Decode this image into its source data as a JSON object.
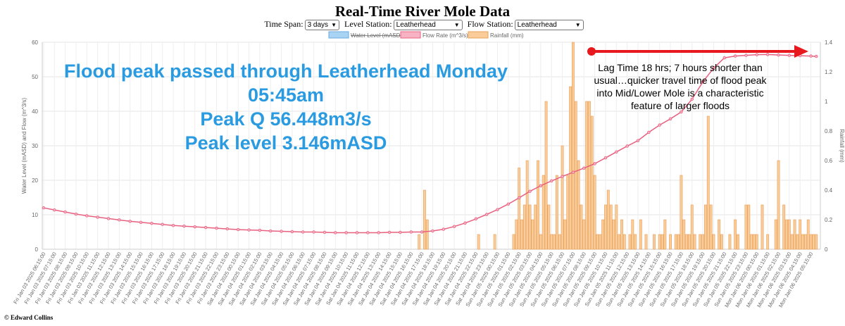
{
  "page": {
    "title": "Real-Time River Mole Data",
    "footer": "© Edward Collins"
  },
  "controls": {
    "time_span_label": "Time Span:",
    "time_span_value": "3 days",
    "level_station_label": "Level Station:",
    "level_station_value": "Leatherhead",
    "flow_station_label": "Flow Station:",
    "flow_station_value": "Leatherhead"
  },
  "annotations": {
    "peak_lines": [
      "Flood peak passed through Leatherhead Monday",
      "05:45am",
      "Peak Q 56.448m3/s",
      "Peak level 3.146mASD"
    ],
    "lag_lines": [
      "Lag Time 18 hrs; 7 hours shorter than",
      "usual…quicker travel time of flood peak",
      "into Mid/Lower Mole is a characteristic",
      "feature of larger floods"
    ],
    "arrow_color": "#e8191e",
    "peak_text_color": "#2a9be0"
  },
  "chart_data": {
    "type": "bar",
    "xlabel": "",
    "ylabel": "Water Level (mASD) and Flow (m^3/s)",
    "ylabel_right": "Rainfall (mm)",
    "ylim": [
      0,
      60
    ],
    "ylim_right": [
      0,
      1.4
    ],
    "yticks": [
      0,
      10,
      20,
      30,
      40,
      50,
      60
    ],
    "yticks_right": [
      0,
      0.2,
      0.4,
      0.6,
      0.8,
      1.0,
      1.2,
      1.4
    ],
    "grid": true,
    "legend_position": "top",
    "legend": [
      {
        "name": "Water Level (mASD)",
        "color": "#a9d3f2",
        "border": "#66a8e0",
        "hidden": true
      },
      {
        "name": "Flow Rate (m^3/s)",
        "color": "#f7b3c4",
        "border": "#e8607f",
        "hidden": false
      },
      {
        "name": "Rainfall (mm)",
        "color": "#f9cc9a",
        "border": "#e8a05a",
        "hidden": false
      }
    ],
    "x_tick_labels": [
      "Fri Jan 03 2025 06:15:00",
      "Fri Jan 03 2025 07:15:00",
      "Fri Jan 03 2025 08:15:00",
      "Fri Jan 03 2025 09:15:00",
      "Fri Jan 03 2025 10:15:00",
      "Fri Jan 03 2025 11:15:00",
      "Fri Jan 03 2025 12:15:00",
      "Fri Jan 03 2025 13:15:00",
      "Fri Jan 03 2025 14:15:00",
      "Fri Jan 03 2025 15:15:00",
      "Fri Jan 03 2025 16:15:00",
      "Fri Jan 03 2025 17:15:00",
      "Fri Jan 03 2025 18:15:00",
      "Fri Jan 03 2025 19:15:00",
      "Fri Jan 03 2025 20:15:00",
      "Fri Jan 03 2025 21:15:00",
      "Fri Jan 03 2025 22:15:00",
      "Fri Jan 03 2025 23:15:00",
      "Sat Jan 04 2025 00:15:00",
      "Sat Jan 04 2025 01:15:00",
      "Sat Jan 04 2025 02:15:00",
      "Sat Jan 04 2025 03:15:00",
      "Sat Jan 04 2025 04:15:00",
      "Sat Jan 04 2025 05:15:00",
      "Sat Jan 04 2025 06:15:00",
      "Sat Jan 04 2025 07:15:00",
      "Sat Jan 04 2025 08:15:00",
      "Sat Jan 04 2025 09:15:00",
      "Sat Jan 04 2025 10:15:00",
      "Sat Jan 04 2025 11:15:00",
      "Sat Jan 04 2025 12:15:00",
      "Sat Jan 04 2025 13:15:00",
      "Sat Jan 04 2025 14:15:00",
      "Sat Jan 04 2025 15:15:00",
      "Sat Jan 04 2025 16:15:00",
      "Sat Jan 04 2025 17:15:00",
      "Sat Jan 04 2025 18:15:00",
      "Sat Jan 04 2025 19:15:00",
      "Sat Jan 04 2025 20:15:00",
      "Sat Jan 04 2025 21:15:00",
      "Sat Jan 04 2025 22:15:00",
      "Sat Jan 04 2025 23:15:00",
      "Sun Jan 05 2025 00:15:00",
      "Sun Jan 05 2025 01:15:00",
      "Sun Jan 05 2025 02:15:00",
      "Sun Jan 05 2025 03:15:00",
      "Sun Jan 05 2025 04:15:00",
      "Sun Jan 05 2025 05:15:00",
      "Sun Jan 05 2025 06:15:00",
      "Sun Jan 05 2025 07:15:00",
      "Sun Jan 05 2025 08:15:00",
      "Sun Jan 05 2025 09:15:00",
      "Sun Jan 05 2025 10:15:00",
      "Sun Jan 05 2025 11:15:00",
      "Sun Jan 05 2025 12:15:00",
      "Sun Jan 05 2025 13:15:00",
      "Sun Jan 05 2025 14:15:00",
      "Sun Jan 05 2025 15:15:00",
      "Sun Jan 05 2025 16:15:00",
      "Sun Jan 05 2025 17:15:00",
      "Sun Jan 05 2025 18:15:00",
      "Sun Jan 05 2025 19:15:00",
      "Sun Jan 05 2025 20:15:00",
      "Sun Jan 05 2025 21:15:00",
      "Sun Jan 05 2025 22:15:00",
      "Sun Jan 05 2025 23:15:00",
      "Mon Jan 06 2025 00:15:00",
      "Mon Jan 06 2025 01:15:00",
      "Mon Jan 06 2025 02:15:00",
      "Mon Jan 06 2025 03:15:00",
      "Mon Jan 06 2025 04:15:00",
      "Mon Jan 06 2025 05:15:00"
    ],
    "flow_series": {
      "name": "Flow Rate (m^3/s)",
      "x": [
        0,
        4,
        8,
        12,
        16,
        20,
        24,
        28,
        32,
        36,
        40,
        44,
        48,
        52,
        56,
        60,
        64,
        68,
        72,
        76,
        80,
        84,
        88,
        92,
        96,
        100,
        104,
        108,
        112,
        116,
        120,
        124,
        128,
        132,
        136,
        140,
        144,
        148,
        152,
        156,
        160,
        164,
        168,
        172,
        176,
        180,
        184,
        188,
        192,
        196,
        200,
        204,
        208,
        212,
        216,
        220,
        224,
        228,
        232,
        236,
        240,
        244,
        248,
        252,
        256,
        260,
        264,
        268,
        272,
        276,
        280,
        284,
        286
      ],
      "values": [
        12.0,
        11.4,
        10.8,
        10.2,
        9.7,
        9.3,
        8.9,
        8.5,
        8.1,
        7.8,
        7.5,
        7.2,
        6.9,
        6.7,
        6.5,
        6.3,
        6.1,
        5.9,
        5.7,
        5.6,
        5.5,
        5.3,
        5.2,
        5.1,
        5.0,
        5.0,
        4.9,
        4.8,
        4.8,
        4.8,
        4.8,
        4.8,
        4.9,
        4.9,
        5.0,
        5.0,
        5.3,
        5.8,
        6.6,
        7.6,
        8.8,
        10.1,
        11.5,
        13.1,
        14.9,
        16.8,
        18.4,
        19.8,
        21.1,
        22.3,
        23.5,
        24.8,
        26.5,
        28.2,
        29.9,
        31.5,
        33.9,
        36.0,
        37.8,
        39.8,
        43.5,
        48.5,
        52.5,
        55.5,
        56.0,
        56.2,
        56.4,
        56.448,
        56.3,
        56.2,
        56.1,
        56.0,
        55.9
      ]
    },
    "rainfall_series": {
      "name": "Rainfall (mm)",
      "x": [
        139,
        141,
        142,
        161,
        167,
        174,
        175,
        176,
        177,
        178,
        179,
        180,
        181,
        182,
        183,
        184,
        185,
        186,
        187,
        188,
        189,
        190,
        191,
        192,
        193,
        194,
        195,
        196,
        197,
        198,
        199,
        200,
        201,
        202,
        203,
        204,
        205,
        206,
        207,
        208,
        209,
        210,
        211,
        212,
        213,
        214,
        215,
        217,
        218,
        219,
        221,
        223,
        226,
        228,
        229,
        230,
        232,
        234,
        235,
        236,
        237,
        238,
        239,
        240,
        241,
        243,
        244,
        245,
        246,
        247,
        248,
        250,
        251,
        254,
        256,
        257,
        260,
        261,
        262,
        263,
        264,
        266,
        268,
        271,
        272,
        274,
        275,
        276,
        277,
        278,
        279,
        280,
        281,
        282,
        283,
        284,
        285,
        286
      ],
      "values": [
        0.1,
        0.4,
        0.2,
        0.1,
        0.1,
        0.1,
        0.2,
        0.55,
        0.2,
        0.3,
        0.6,
        0.3,
        0.2,
        0.3,
        0.6,
        0.1,
        0.5,
        1.0,
        0.3,
        0.1,
        0.1,
        0.5,
        0.1,
        0.7,
        0.2,
        0.5,
        1.1,
        1.4,
        1.0,
        0.6,
        0.3,
        0.2,
        1.0,
        1.0,
        0.9,
        0.5,
        0.1,
        0.1,
        0.2,
        0.3,
        0.4,
        0.3,
        0.2,
        0.3,
        0.1,
        0.2,
        0.1,
        0.1,
        0.2,
        0.1,
        0.2,
        0.1,
        0.1,
        0.1,
        0.1,
        0.2,
        0.1,
        0.1,
        0.1,
        0.5,
        0.2,
        0.1,
        0.1,
        0.3,
        0.1,
        0.1,
        0.1,
        0.3,
        0.9,
        0.3,
        0.1,
        0.2,
        0.1,
        0.1,
        0.2,
        0.1,
        0.3,
        0.3,
        0.1,
        0.1,
        0.1,
        0.3,
        0.1,
        0.2,
        0.6,
        0.3,
        0.2,
        0.2,
        0.1,
        0.2,
        0.1,
        0.2,
        0.1,
        0.1,
        0.2,
        0.1,
        0.1,
        0.1
      ]
    }
  }
}
